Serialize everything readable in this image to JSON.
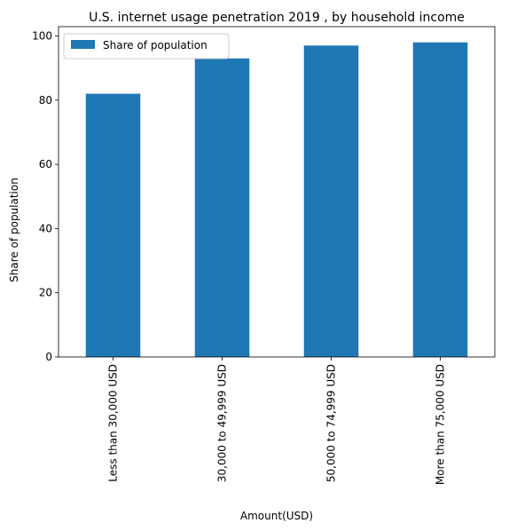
{
  "chart_data": {
    "type": "bar",
    "title": "U.S. internet usage penetration 2019 , by household income",
    "xlabel": "Amount(USD)",
    "ylabel": "Share of population",
    "categories": [
      "Less than 30,000 USD",
      "30,000 to 49,999 USD",
      "50,000 to 74,999 USD",
      "More than 75,000 USD"
    ],
    "series": [
      {
        "name": "Share of population",
        "values": [
          82,
          93,
          97,
          98
        ],
        "color": "#1f77b4"
      }
    ],
    "ylim": [
      0,
      102.9
    ],
    "yticks": [
      "0",
      "20",
      "40",
      "60",
      "80",
      "100"
    ],
    "grid": false,
    "legend_position": "top-left"
  }
}
